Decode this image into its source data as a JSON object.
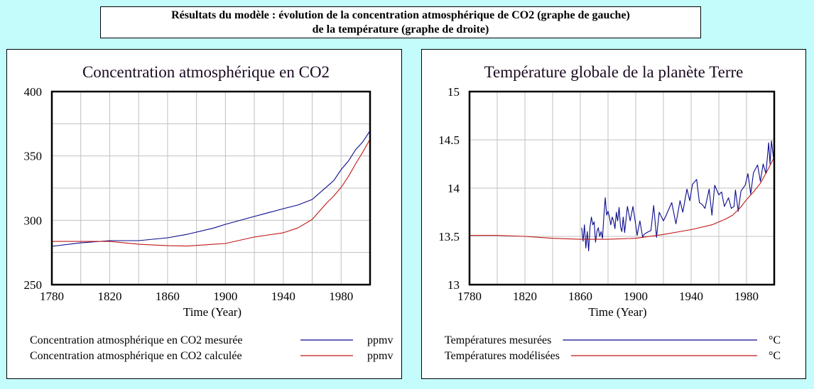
{
  "header": {
    "line1": "Résultats du modèle : évolution de la concentration atmosphérique de CO2 (graphe de gauche)",
    "line2": "de la température (graphe de droite)"
  },
  "colors": {
    "background": "#c4fcfc",
    "measured": "#0a0a8c",
    "modeled": "#c01818",
    "grid": "#c0c0c0"
  },
  "chart_data": [
    {
      "type": "line",
      "title": "Concentration atmosphérique en CO2",
      "xlabel": "Time (Year)",
      "ylabel": "",
      "xlim": [
        1780,
        2000
      ],
      "ylim": [
        250,
        400
      ],
      "xticks": [
        1780,
        1820,
        1860,
        1900,
        1940,
        1980
      ],
      "xtick_labels": [
        "1780",
        "1820",
        "1860",
        "1900",
        "1940",
        "1980"
      ],
      "yticks": [
        250,
        300,
        350,
        400
      ],
      "ytick_labels": [
        "250",
        "300",
        "350",
        "400"
      ],
      "x_grid_step": 20,
      "y_grid_step": 25,
      "grid": true,
      "legend_position": "bottom",
      "series": [
        {
          "name": "Concentration atmosphérique en CO2 mesurée",
          "unit": "ppmv",
          "color": "#0a0a8c",
          "x": [
            1780,
            1800,
            1820,
            1840,
            1860,
            1874,
            1892,
            1900,
            1920,
            1940,
            1950,
            1960,
            1970,
            1975,
            1980,
            1985,
            1990,
            1995,
            2000
          ],
          "y": [
            279.8,
            282.5,
            284.2,
            284.2,
            286.4,
            289.2,
            294,
            296.9,
            303,
            309,
            311.8,
            316.2,
            326,
            331,
            339.4,
            346,
            354.8,
            361,
            369.5
          ]
        },
        {
          "name": "Concentration atmosphérique en CO2 calculée",
          "unit": "ppmv",
          "color": "#c01818",
          "x": [
            1780,
            1800,
            1820,
            1840,
            1860,
            1874,
            1892,
            1900,
            1920,
            1940,
            1950,
            1960,
            1970,
            1975,
            1980,
            1985,
            1990,
            1995,
            2000
          ],
          "y": [
            283.6,
            283.6,
            283.6,
            281.4,
            280.3,
            280,
            281.4,
            282,
            287,
            290.3,
            294,
            300.7,
            313.4,
            319,
            325.6,
            334,
            343.8,
            353,
            363
          ]
        }
      ]
    },
    {
      "type": "line",
      "title": "Température globale de la planète Terre",
      "xlabel": "Time (Year)",
      "ylabel": "",
      "xlim": [
        1780,
        2000
      ],
      "ylim": [
        13,
        15
      ],
      "xticks": [
        1780,
        1820,
        1860,
        1900,
        1940,
        1980
      ],
      "xtick_labels": [
        "1780",
        "1820",
        "1860",
        "1900",
        "1940",
        "1980"
      ],
      "yticks": [
        13,
        13.5,
        14,
        14.5,
        15
      ],
      "ytick_labels": [
        "13",
        "13.5",
        "14",
        "14.5",
        "15"
      ],
      "x_grid_step": 20,
      "y_grid_step": 0.5,
      "grid": true,
      "legend_position": "bottom",
      "series": [
        {
          "name": "Températures mesurées",
          "unit": "°C",
          "color": "#0a0a8c",
          "x": [
            1861,
            1862,
            1863,
            1864,
            1865,
            1866,
            1867,
            1868,
            1869,
            1870,
            1871,
            1872,
            1873,
            1874,
            1875,
            1876,
            1877,
            1878,
            1879,
            1880,
            1881,
            1882,
            1883,
            1884,
            1885,
            1886,
            1887,
            1888,
            1889,
            1890,
            1891,
            1892,
            1894,
            1896,
            1898,
            1900,
            1901,
            1903,
            1905,
            1906,
            1908,
            1911,
            1913,
            1915,
            1917,
            1920,
            1922,
            1926,
            1929,
            1932,
            1934,
            1937,
            1939,
            1941,
            1944,
            1946,
            1948,
            1950,
            1953,
            1955,
            1957,
            1960,
            1962,
            1964,
            1967,
            1969,
            1971,
            1972,
            1974,
            1976,
            1979,
            1981,
            1983,
            1985,
            1988,
            1990,
            1992,
            1994,
            1996,
            1997,
            1998,
            2000
          ],
          "y": [
            13.59,
            13.45,
            13.62,
            13.38,
            13.55,
            13.35,
            13.6,
            13.7,
            13.62,
            13.65,
            13.44,
            13.55,
            13.59,
            13.5,
            13.55,
            13.48,
            13.7,
            13.9,
            13.72,
            13.76,
            13.7,
            13.62,
            13.7,
            13.66,
            13.58,
            13.75,
            13.66,
            13.8,
            13.6,
            13.55,
            13.7,
            13.54,
            13.81,
            13.66,
            13.81,
            13.62,
            13.51,
            13.66,
            13.49,
            13.52,
            13.54,
            13.56,
            13.82,
            13.49,
            13.75,
            13.66,
            13.72,
            13.85,
            13.63,
            13.87,
            13.75,
            13.99,
            13.87,
            14.04,
            14.09,
            13.85,
            13.83,
            13.79,
            13.99,
            13.72,
            14.03,
            13.93,
            13.96,
            13.81,
            13.9,
            13.79,
            13.81,
            13.98,
            13.76,
            13.97,
            14.03,
            14.15,
            13.94,
            14.16,
            14.24,
            14.07,
            14.25,
            14.15,
            14.47,
            14.25,
            14.49,
            14.25
          ]
        },
        {
          "name": "Températures modélisées",
          "unit": "°C",
          "color": "#c01818",
          "x": [
            1780,
            1800,
            1820,
            1840,
            1860,
            1880,
            1900,
            1920,
            1940,
            1955,
            1965,
            1970,
            1975,
            1980,
            1985,
            1990,
            1995,
            2000
          ],
          "y": [
            13.51,
            13.51,
            13.5,
            13.48,
            13.47,
            13.47,
            13.48,
            13.52,
            13.57,
            13.62,
            13.68,
            13.72,
            13.79,
            13.88,
            13.96,
            14.05,
            14.18,
            14.32
          ]
        }
      ]
    }
  ]
}
